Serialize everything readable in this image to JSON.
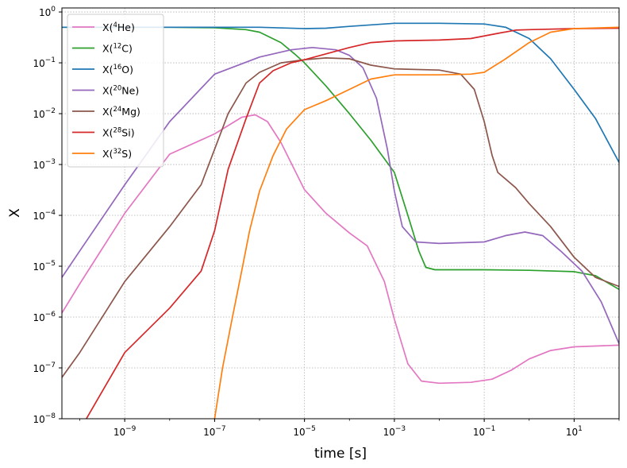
{
  "chart_data": {
    "type": "line",
    "title": "",
    "xlabel": "time [s]",
    "ylabel": "X",
    "xscale": "log",
    "yscale": "log",
    "xlim": [
      4e-11,
      100
    ],
    "ylim": [
      1e-08,
      1.2
    ],
    "grid": true,
    "legend_position": "top-left",
    "x_ticks": [
      {
        "value": 1e-09,
        "base": "10",
        "exp": "−9"
      },
      {
        "value": 1e-07,
        "base": "10",
        "exp": "−7"
      },
      {
        "value": 1e-05,
        "base": "10",
        "exp": "−5"
      },
      {
        "value": 0.001,
        "base": "10",
        "exp": "−3"
      },
      {
        "value": 0.1,
        "base": "10",
        "exp": "−1"
      },
      {
        "value": 10,
        "base": "10",
        "exp": "1"
      }
    ],
    "y_ticks": [
      {
        "value": 1e-08,
        "base": "10",
        "exp": "−8"
      },
      {
        "value": 1e-07,
        "base": "10",
        "exp": "−7"
      },
      {
        "value": 1e-06,
        "base": "10",
        "exp": "−6"
      },
      {
        "value": 1e-05,
        "base": "10",
        "exp": "−5"
      },
      {
        "value": 0.0001,
        "base": "10",
        "exp": "−4"
      },
      {
        "value": 0.001,
        "base": "10",
        "exp": "−3"
      },
      {
        "value": 0.01,
        "base": "10",
        "exp": "−2"
      },
      {
        "value": 0.1,
        "base": "10",
        "exp": "−1"
      },
      {
        "value": 1,
        "base": "10",
        "exp": "0"
      }
    ],
    "series": [
      {
        "legend_prefix": "X(",
        "legend_sup": "4",
        "legend_element": "He",
        "legend_suffix": ")",
        "color": "#e377c2",
        "points": [
          [
            4e-11,
            1.2e-06
          ],
          [
            1e-10,
            4.5e-06
          ],
          [
            1e-09,
            0.00011
          ],
          [
            1e-08,
            0.0016
          ],
          [
            1e-07,
            0.004
          ],
          [
            4e-07,
            0.0085
          ],
          [
            8e-07,
            0.0095
          ],
          [
            1.5e-06,
            0.007
          ],
          [
            3e-06,
            0.0027
          ],
          [
            1e-05,
            0.00032
          ],
          [
            3e-05,
            0.00011
          ],
          [
            0.0001,
            4.5e-05
          ],
          [
            0.00025,
            2.5e-05
          ],
          [
            0.0006,
            5e-06
          ],
          [
            0.001,
            9e-07
          ],
          [
            0.002,
            1.2e-07
          ],
          [
            0.004,
            5.5e-08
          ],
          [
            0.01,
            5e-08
          ],
          [
            0.05,
            5.2e-08
          ],
          [
            0.15,
            6e-08
          ],
          [
            0.4,
            9e-08
          ],
          [
            1,
            1.5e-07
          ],
          [
            3,
            2.2e-07
          ],
          [
            10,
            2.6e-07
          ],
          [
            100,
            2.8e-07
          ]
        ]
      },
      {
        "legend_prefix": "X(",
        "legend_sup": "12",
        "legend_element": "C",
        "legend_suffix": ")",
        "color": "#2ca02c",
        "points": [
          [
            4e-11,
            0.5
          ],
          [
            1e-08,
            0.5
          ],
          [
            1e-07,
            0.49
          ],
          [
            5e-07,
            0.45
          ],
          [
            1e-06,
            0.4
          ],
          [
            3e-06,
            0.25
          ],
          [
            6e-06,
            0.15
          ],
          [
            1e-05,
            0.1
          ],
          [
            3e-05,
            0.035
          ],
          [
            0.0001,
            0.01
          ],
          [
            0.0003,
            0.003
          ],
          [
            0.001,
            0.0007
          ],
          [
            0.002,
            0.0001
          ],
          [
            0.0035,
            2e-05
          ],
          [
            0.005,
            9.5e-06
          ],
          [
            0.008,
            8.5e-06
          ],
          [
            0.1,
            8.5e-06
          ],
          [
            1,
            8.3e-06
          ],
          [
            10,
            7.8e-06
          ],
          [
            30,
            6.5e-06
          ],
          [
            100,
            3.5e-06
          ]
        ]
      },
      {
        "legend_prefix": "X(",
        "legend_sup": "16",
        "legend_element": "O",
        "legend_suffix": ")",
        "color": "#1f77b4",
        "points": [
          [
            4e-11,
            0.5
          ],
          [
            1e-06,
            0.5
          ],
          [
            1e-05,
            0.47
          ],
          [
            3e-05,
            0.48
          ],
          [
            0.0001,
            0.52
          ],
          [
            0.001,
            0.6
          ],
          [
            0.01,
            0.6
          ],
          [
            0.1,
            0.58
          ],
          [
            0.3,
            0.5
          ],
          [
            1,
            0.3
          ],
          [
            3,
            0.12
          ],
          [
            10,
            0.03
          ],
          [
            30,
            0.008
          ],
          [
            100,
            0.0011
          ]
        ]
      },
      {
        "legend_prefix": "X(",
        "legend_sup": "20",
        "legend_element": "Ne",
        "legend_suffix": ")",
        "color": "#9467bd",
        "points": [
          [
            4e-11,
            6e-06
          ],
          [
            1e-10,
            2e-05
          ],
          [
            1e-09,
            0.0004
          ],
          [
            1e-08,
            0.007
          ],
          [
            1e-07,
            0.06
          ],
          [
            1e-06,
            0.13
          ],
          [
            5e-06,
            0.18
          ],
          [
            1.5e-05,
            0.2
          ],
          [
            5e-05,
            0.18
          ],
          [
            0.0001,
            0.14
          ],
          [
            0.0002,
            0.08
          ],
          [
            0.0004,
            0.02
          ],
          [
            0.0007,
            0.002
          ],
          [
            0.001,
            0.0003
          ],
          [
            0.0015,
            6e-05
          ],
          [
            0.003,
            3e-05
          ],
          [
            0.01,
            2.8e-05
          ],
          [
            0.1,
            3e-05
          ],
          [
            0.3,
            4e-05
          ],
          [
            0.8,
            4.7e-05
          ],
          [
            2,
            4e-05
          ],
          [
            5,
            2e-05
          ],
          [
            15,
            8e-06
          ],
          [
            40,
            2e-06
          ],
          [
            100,
            3e-07
          ]
        ]
      },
      {
        "legend_prefix": "X(",
        "legend_sup": "24",
        "legend_element": "Mg",
        "legend_suffix": ")",
        "color": "#8c564b",
        "points": [
          [
            4e-11,
            6.5e-08
          ],
          [
            1e-10,
            2e-07
          ],
          [
            1e-09,
            5e-06
          ],
          [
            1e-08,
            6e-05
          ],
          [
            5e-08,
            0.0004
          ],
          [
            1e-07,
            0.002
          ],
          [
            2e-07,
            0.01
          ],
          [
            5e-07,
            0.04
          ],
          [
            1e-06,
            0.065
          ],
          [
            3e-06,
            0.1
          ],
          [
            1e-05,
            0.115
          ],
          [
            3e-05,
            0.125
          ],
          [
            0.0001,
            0.12
          ],
          [
            0.0003,
            0.09
          ],
          [
            0.001,
            0.076
          ],
          [
            0.01,
            0.072
          ],
          [
            0.03,
            0.06
          ],
          [
            0.06,
            0.03
          ],
          [
            0.1,
            0.007
          ],
          [
            0.15,
            0.0015
          ],
          [
            0.2,
            0.0007
          ],
          [
            0.5,
            0.00035
          ],
          [
            1,
            0.00017
          ],
          [
            3,
            6e-05
          ],
          [
            10,
            1.5e-05
          ],
          [
            30,
            6e-06
          ],
          [
            100,
            4e-06
          ]
        ]
      },
      {
        "legend_prefix": "X(",
        "legend_sup": "28",
        "legend_element": "Si",
        "legend_suffix": ")",
        "color": "#d62728",
        "points": [
          [
            1.4e-10,
            1e-08
          ],
          [
            1e-09,
            2e-07
          ],
          [
            1e-08,
            1.5e-06
          ],
          [
            5e-08,
            8e-06
          ],
          [
            1e-07,
            5e-05
          ],
          [
            2e-07,
            0.0008
          ],
          [
            5e-07,
            0.008
          ],
          [
            1e-06,
            0.04
          ],
          [
            2e-06,
            0.07
          ],
          [
            5e-06,
            0.1
          ],
          [
            1e-05,
            0.115
          ],
          [
            3e-05,
            0.15
          ],
          [
            0.0001,
            0.2
          ],
          [
            0.0003,
            0.25
          ],
          [
            0.001,
            0.27
          ],
          [
            0.01,
            0.28
          ],
          [
            0.05,
            0.3
          ],
          [
            0.2,
            0.38
          ],
          [
            0.5,
            0.44
          ],
          [
            1,
            0.45
          ],
          [
            10,
            0.47
          ],
          [
            100,
            0.48
          ]
        ]
      },
      {
        "legend_prefix": "X(",
        "legend_sup": "32",
        "legend_element": "S",
        "legend_suffix": ")",
        "color": "#ff7f0e",
        "points": [
          [
            1e-07,
            1e-08
          ],
          [
            1.5e-07,
            1e-07
          ],
          [
            2.5e-07,
            1e-06
          ],
          [
            4e-07,
            8e-06
          ],
          [
            6e-07,
            5e-05
          ],
          [
            1e-06,
            0.0003
          ],
          [
            2e-06,
            0.0015
          ],
          [
            4e-06,
            0.005
          ],
          [
            1e-05,
            0.012
          ],
          [
            3e-05,
            0.018
          ],
          [
            0.0001,
            0.03
          ],
          [
            0.0003,
            0.048
          ],
          [
            0.001,
            0.058
          ],
          [
            0.01,
            0.058
          ],
          [
            0.05,
            0.06
          ],
          [
            0.1,
            0.065
          ],
          [
            0.3,
            0.12
          ],
          [
            1,
            0.25
          ],
          [
            3,
            0.4
          ],
          [
            10,
            0.47
          ],
          [
            100,
            0.5
          ]
        ]
      }
    ]
  }
}
